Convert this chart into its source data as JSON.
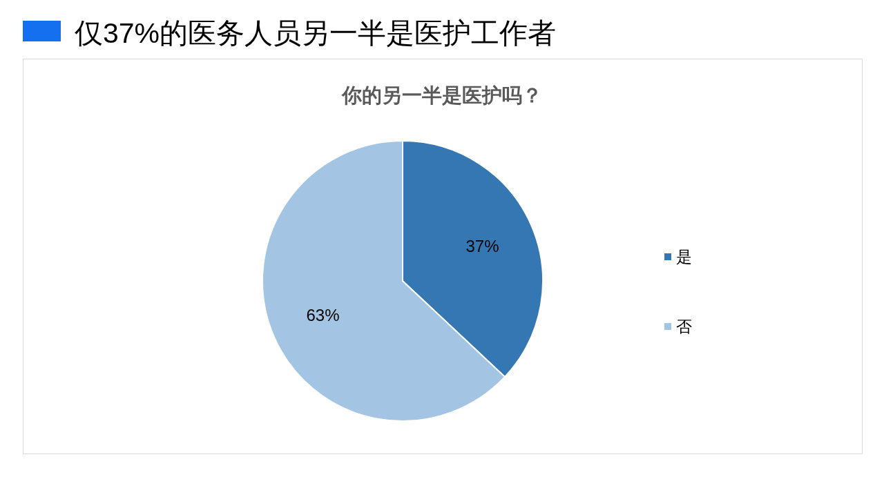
{
  "chart_data": {
    "type": "pie",
    "title": "仅37%的医务人员另一半是医护工作者",
    "subtitle": "你的另一半是医护吗？",
    "categories": [
      "是",
      "否"
    ],
    "values": [
      37,
      63
    ],
    "colors": [
      "#3577b3",
      "#a3c4e2"
    ],
    "value_labels": [
      "37%",
      "63%"
    ],
    "legend": "right"
  }
}
